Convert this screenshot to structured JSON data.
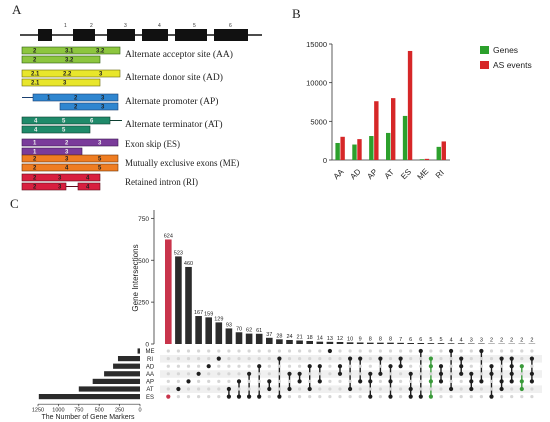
{
  "panel_letters": {
    "a": "A",
    "b": "B",
    "c": "C"
  },
  "gene_model": {
    "exon_numbers": [
      "1",
      "2",
      "3",
      "4",
      "5",
      "6"
    ]
  },
  "as_events": [
    {
      "label": "Alternate acceptor site (AA)",
      "color": "#8dc63f",
      "isoform1": [
        "2",
        "3.1",
        "3.2"
      ],
      "isoform2": [
        "2",
        "3.2"
      ]
    },
    {
      "label": "Alternate donor site (AD)",
      "color": "#e8e62b",
      "isoform1": [
        "2.1",
        "2.2",
        "3"
      ],
      "isoform2": [
        "2.1",
        "3"
      ]
    },
    {
      "label": "Alternate promoter (AP)",
      "color": "#2f86d0",
      "isoform1": [
        "1",
        "2",
        "3"
      ],
      "isoform2": [
        "2",
        "3"
      ]
    },
    {
      "label": "Alternate terminator (AT)",
      "color": "#1f8a6a",
      "isoform1": [
        "4",
        "5",
        "6"
      ],
      "isoform2": [
        "4",
        "5"
      ]
    },
    {
      "label": "Exon skip  (ES)",
      "color": "#7a3b9a",
      "isoform1": [
        "1",
        "2",
        "3"
      ],
      "isoform2": [
        "1",
        "3"
      ]
    },
    {
      "label": "Mutually exclusive exons (ME)",
      "color": "#ef7d22",
      "isoform1": [
        "2",
        "3",
        "5"
      ],
      "isoform2": [
        "2",
        "4",
        "5"
      ]
    },
    {
      "label": "Retained intron  (RI)",
      "color": "#d81f3f",
      "isoform1": [
        "2",
        "3",
        "4"
      ],
      "isoform2": [
        "2",
        "3",
        "4"
      ]
    }
  ],
  "chart_data": [
    {
      "type": "bar",
      "categories": [
        "AA",
        "AD",
        "AP",
        "AT",
        "ES",
        "ME",
        "RI"
      ],
      "series": [
        {
          "name": "Genes",
          "color": "#2ca02c",
          "values": [
            2200,
            2000,
            3100,
            3500,
            5700,
            100,
            1700
          ]
        },
        {
          "name": "AS events",
          "color": "#d62728",
          "values": [
            3000,
            2700,
            7600,
            8000,
            14100,
            150,
            2400
          ]
        }
      ],
      "ylim": [
        0,
        15000
      ],
      "yticks": [
        0,
        5000,
        10000,
        15000
      ],
      "legend": "top-right",
      "grid": false
    },
    {
      "type": "bar",
      "ylabel": "Gene Intersections",
      "ylim": [
        0,
        800
      ],
      "yticks": [
        0,
        250,
        500,
        750
      ],
      "values": [
        624,
        523,
        460,
        167,
        159,
        129,
        93,
        70,
        62,
        61,
        37,
        28,
        24,
        21,
        18,
        14,
        13,
        12,
        10,
        9,
        8,
        8,
        8,
        7,
        6,
        6,
        5,
        5,
        4,
        4,
        3,
        3,
        2,
        2,
        2,
        2,
        2
      ],
      "highlight_bar": 0,
      "highlight_color": "#c8344b"
    },
    {
      "type": "bar",
      "orientation": "horizontal",
      "categories": [
        "ME",
        "RI",
        "AD",
        "AA",
        "AP",
        "AT",
        "ES"
      ],
      "values": [
        30,
        270,
        330,
        440,
        580,
        750,
        1240
      ],
      "xlabel": "The Number of Gene Markers",
      "xticks": [
        1250,
        1000,
        750,
        500,
        250,
        0
      ],
      "xlim": [
        1250,
        0
      ]
    }
  ]
}
